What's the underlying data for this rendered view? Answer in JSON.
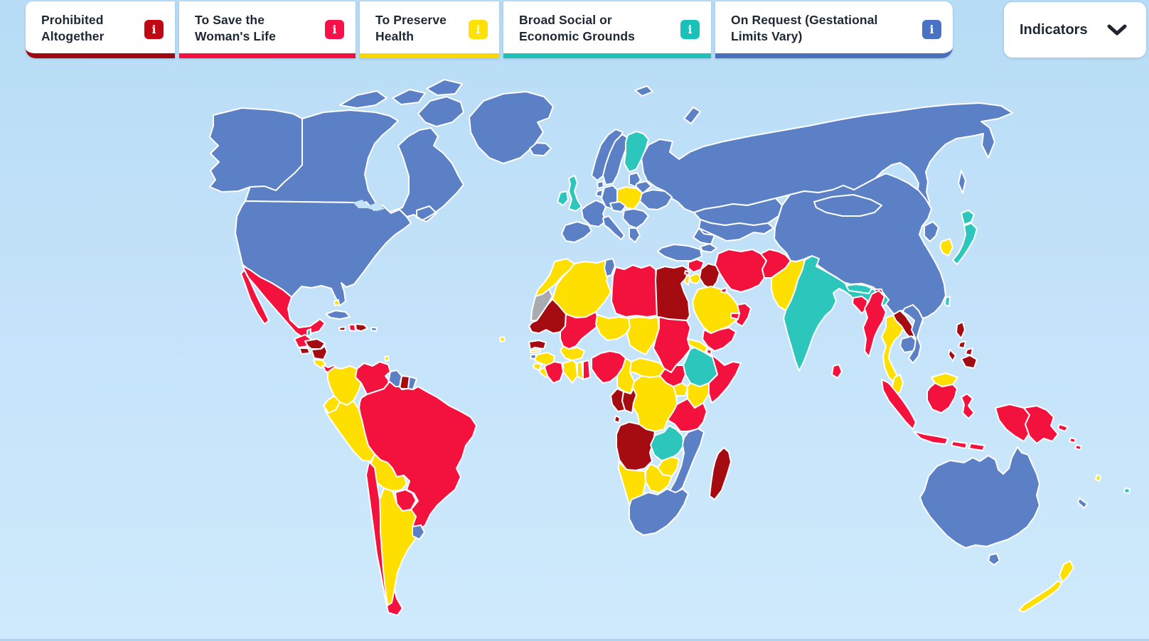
{
  "legend": {
    "info_symbol": "i",
    "cards": [
      {
        "id": "prohibited",
        "label": "Prohibited Altogether",
        "color": "#a50c12",
        "border_color": "#9e0911",
        "badge_color": "#c00713"
      },
      {
        "id": "save_life",
        "label": "To Save the Woman's Life",
        "color": "#f3123d",
        "border_color": "#f3123d",
        "badge_color": "#f81149"
      },
      {
        "id": "preserve_health",
        "label": "To Preserve Health",
        "color": "#ffdf00",
        "border_color": "#f7d800",
        "badge_color": "#ffe205"
      },
      {
        "id": "broad_social",
        "label": "Broad Social or Economic Grounds",
        "color": "#2cc6bd",
        "border_color": "#21c0b6",
        "badge_color": "#19c2b8"
      },
      {
        "id": "on_request",
        "label": "On Request (Gestational Limits Vary)",
        "color": "#5b80c6",
        "border_color": "#4a70bd",
        "badge_color": "#4a72c4"
      }
    ]
  },
  "indicators": {
    "label": "Indicators"
  },
  "map": {
    "no_data_color": "#a8abaf",
    "lake_color": "#c2e3f9",
    "border_color": "#ffffff",
    "ocean_top": "#b8dcf6",
    "ocean_bottom": "#cfeafc",
    "countries": [
      {
        "slug": "russia",
        "name": "Russia",
        "category": "on_request"
      },
      {
        "slug": "canada",
        "name": "Canada",
        "category": "on_request"
      },
      {
        "slug": "usa",
        "name": "United States",
        "category": "on_request"
      },
      {
        "slug": "greenland",
        "name": "Greenland",
        "category": "on_request"
      },
      {
        "slug": "mexico",
        "name": "Mexico",
        "category": "save_life"
      },
      {
        "slug": "cuba",
        "name": "Cuba",
        "category": "on_request"
      },
      {
        "slug": "jamaica",
        "name": "Jamaica",
        "category": "prohibited"
      },
      {
        "slug": "haiti",
        "name": "Haiti",
        "category": "save_life"
      },
      {
        "slug": "dominican_republic",
        "name": "Dominican Republic",
        "category": "prohibited"
      },
      {
        "slug": "puerto_rico",
        "name": "Puerto Rico",
        "category": "on_request"
      },
      {
        "slug": "bahamas",
        "name": "Bahamas",
        "category": "preserve_health"
      },
      {
        "slug": "belize",
        "name": "Belize",
        "category": "broad_social"
      },
      {
        "slug": "guatemala",
        "name": "Guatemala",
        "category": "save_life"
      },
      {
        "slug": "honduras",
        "name": "Honduras",
        "category": "prohibited"
      },
      {
        "slug": "el_salvador",
        "name": "El Salvador",
        "category": "prohibited"
      },
      {
        "slug": "nicaragua",
        "name": "Nicaragua",
        "category": "prohibited"
      },
      {
        "slug": "costa_rica",
        "name": "Costa Rica",
        "category": "preserve_health"
      },
      {
        "slug": "panama",
        "name": "Panama",
        "category": "save_life"
      },
      {
        "slug": "trinidad_tobago",
        "name": "Trinidad and Tobago",
        "category": "preserve_health"
      },
      {
        "slug": "colombia",
        "name": "Colombia",
        "category": "preserve_health"
      },
      {
        "slug": "venezuela",
        "name": "Venezuela",
        "category": "save_life"
      },
      {
        "slug": "guyana",
        "name": "Guyana",
        "category": "on_request"
      },
      {
        "slug": "suriname",
        "name": "Suriname",
        "category": "prohibited"
      },
      {
        "slug": "french_guiana",
        "name": "French Guiana",
        "category": "on_request"
      },
      {
        "slug": "brazil",
        "name": "Brazil",
        "category": "save_life"
      },
      {
        "slug": "ecuador",
        "name": "Ecuador",
        "category": "preserve_health"
      },
      {
        "slug": "peru",
        "name": "Peru",
        "category": "preserve_health"
      },
      {
        "slug": "bolivia",
        "name": "Bolivia",
        "category": "preserve_health"
      },
      {
        "slug": "paraguay",
        "name": "Paraguay",
        "category": "save_life"
      },
      {
        "slug": "chile",
        "name": "Chile",
        "category": "save_life"
      },
      {
        "slug": "argentina",
        "name": "Argentina",
        "category": "preserve_health"
      },
      {
        "slug": "uruguay",
        "name": "Uruguay",
        "category": "on_request"
      },
      {
        "slug": "morocco",
        "name": "Morocco",
        "category": "preserve_health"
      },
      {
        "slug": "western_sahara",
        "name": "Western Sahara",
        "category": "no_data"
      },
      {
        "slug": "algeria",
        "name": "Algeria",
        "category": "preserve_health"
      },
      {
        "slug": "tunisia",
        "name": "Tunisia",
        "category": "on_request"
      },
      {
        "slug": "libya",
        "name": "Libya",
        "category": "save_life"
      },
      {
        "slug": "egypt",
        "name": "Egypt",
        "category": "prohibited"
      },
      {
        "slug": "mauritania",
        "name": "Mauritania",
        "category": "prohibited"
      },
      {
        "slug": "mali",
        "name": "Mali",
        "category": "save_life"
      },
      {
        "slug": "niger",
        "name": "Niger",
        "category": "preserve_health"
      },
      {
        "slug": "chad",
        "name": "Chad",
        "category": "preserve_health"
      },
      {
        "slug": "sudan",
        "name": "Sudan",
        "category": "save_life"
      },
      {
        "slug": "eritrea",
        "name": "Eritrea",
        "category": "preserve_health"
      },
      {
        "slug": "djibouti",
        "name": "Djibouti",
        "category": "save_life"
      },
      {
        "slug": "ethiopia",
        "name": "Ethiopia",
        "category": "broad_social"
      },
      {
        "slug": "somalia",
        "name": "Somalia",
        "category": "save_life"
      },
      {
        "slug": "cape_verde",
        "name": "Cape Verde",
        "category": "preserve_health"
      },
      {
        "slug": "senegal",
        "name": "Senegal",
        "category": "prohibited"
      },
      {
        "slug": "gambia",
        "name": "Gambia",
        "category": "preserve_health"
      },
      {
        "slug": "guinea_bissau",
        "name": "Guinea-Bissau",
        "category": "on_request"
      },
      {
        "slug": "guinea",
        "name": "Guinea",
        "category": "preserve_health"
      },
      {
        "slug": "sierra_leone",
        "name": "Sierra Leone",
        "category": "preserve_health"
      },
      {
        "slug": "liberia",
        "name": "Liberia",
        "category": "preserve_health"
      },
      {
        "slug": "ivory_coast",
        "name": "Cote d'Ivoire",
        "category": "save_life"
      },
      {
        "slug": "burkina_faso",
        "name": "Burkina Faso",
        "category": "preserve_health"
      },
      {
        "slug": "ghana",
        "name": "Ghana",
        "category": "preserve_health"
      },
      {
        "slug": "togo",
        "name": "Togo",
        "category": "preserve_health"
      },
      {
        "slug": "benin",
        "name": "Benin",
        "category": "save_life"
      },
      {
        "slug": "nigeria",
        "name": "Nigeria",
        "category": "save_life"
      },
      {
        "slug": "cameroon",
        "name": "Cameroon",
        "category": "preserve_health"
      },
      {
        "slug": "central_african_republic",
        "name": "Central African Republic",
        "category": "preserve_health"
      },
      {
        "slug": "south_sudan",
        "name": "South Sudan",
        "category": "save_life"
      },
      {
        "slug": "uganda",
        "name": "Uganda",
        "category": "preserve_health"
      },
      {
        "slug": "kenya",
        "name": "Kenya",
        "category": "preserve_health"
      },
      {
        "slug": "rwanda_burundi",
        "name": "Rwanda and Burundi",
        "category": "broad_social"
      },
      {
        "slug": "dr_congo",
        "name": "Democratic Republic of the Congo",
        "category": "preserve_health"
      },
      {
        "slug": "gabon",
        "name": "Gabon",
        "category": "prohibited"
      },
      {
        "slug": "congo",
        "name": "Congo",
        "category": "prohibited"
      },
      {
        "slug": "angola",
        "name": "Angola",
        "category": "prohibited"
      },
      {
        "slug": "zambia",
        "name": "Zambia",
        "category": "broad_social"
      },
      {
        "slug": "tanzania",
        "name": "Tanzania",
        "category": "save_life"
      },
      {
        "slug": "malawi",
        "name": "Malawi",
        "category": "save_life"
      },
      {
        "slug": "mozambique",
        "name": "Mozambique",
        "category": "on_request"
      },
      {
        "slug": "zimbabwe",
        "name": "Zimbabwe",
        "category": "preserve_health"
      },
      {
        "slug": "botswana",
        "name": "Botswana",
        "category": "preserve_health"
      },
      {
        "slug": "namibia",
        "name": "Namibia",
        "category": "preserve_health"
      },
      {
        "slug": "south_africa",
        "name": "South Africa",
        "category": "on_request"
      },
      {
        "slug": "madagascar",
        "name": "Madagascar",
        "category": "prohibited"
      },
      {
        "slug": "iceland",
        "name": "Iceland",
        "category": "on_request"
      },
      {
        "slug": "norway",
        "name": "Norway",
        "category": "on_request"
      },
      {
        "slug": "sweden",
        "name": "Sweden",
        "category": "on_request"
      },
      {
        "slug": "finland",
        "name": "Finland",
        "category": "broad_social"
      },
      {
        "slug": "denmark",
        "name": "Denmark",
        "category": "on_request"
      },
      {
        "slug": "baltic_states",
        "name": "Baltic States",
        "category": "on_request"
      },
      {
        "slug": "poland",
        "name": "Poland",
        "category": "preserve_health"
      },
      {
        "slug": "germany",
        "name": "Germany",
        "category": "on_request"
      },
      {
        "slug": "benelux",
        "name": "Benelux",
        "category": "on_request"
      },
      {
        "slug": "france",
        "name": "France",
        "category": "on_request"
      },
      {
        "slug": "spain_portugal",
        "name": "Spain and Portugal",
        "category": "on_request"
      },
      {
        "slug": "italy",
        "name": "Italy",
        "category": "on_request"
      },
      {
        "slug": "central_europe",
        "name": "Central Europe",
        "category": "on_request"
      },
      {
        "slug": "balkans",
        "name": "Balkans",
        "category": "on_request"
      },
      {
        "slug": "greece",
        "name": "Greece",
        "category": "on_request"
      },
      {
        "slug": "ukraine",
        "name": "Ukraine",
        "category": "on_request"
      },
      {
        "slug": "belarus",
        "name": "Belarus",
        "category": "on_request"
      },
      {
        "slug": "uk",
        "name": "United Kingdom",
        "category": "broad_social"
      },
      {
        "slug": "ireland",
        "name": "Ireland",
        "category": "broad_social"
      },
      {
        "slug": "kazakhstan",
        "name": "Kazakhstan",
        "category": "on_request"
      },
      {
        "slug": "central_asia",
        "name": "Central Asia",
        "category": "on_request"
      },
      {
        "slug": "caucasus",
        "name": "Caucasus",
        "category": "on_request"
      },
      {
        "slug": "turkey",
        "name": "Turkey",
        "category": "on_request"
      },
      {
        "slug": "syria",
        "name": "Syria",
        "category": "save_life"
      },
      {
        "slug": "lebanon",
        "name": "Lebanon",
        "category": "save_life"
      },
      {
        "slug": "israel",
        "name": "Israel",
        "category": "preserve_health"
      },
      {
        "slug": "jordan",
        "name": "Jordan",
        "category": "preserve_health"
      },
      {
        "slug": "iraq",
        "name": "Iraq",
        "category": "prohibited"
      },
      {
        "slug": "iran",
        "name": "Iran",
        "category": "save_life"
      },
      {
        "slug": "afghanistan",
        "name": "Afghanistan",
        "category": "save_life"
      },
      {
        "slug": "pakistan",
        "name": "Pakistan",
        "category": "preserve_health"
      },
      {
        "slug": "saudi_arabia",
        "name": "Saudi Arabia",
        "category": "preserve_health"
      },
      {
        "slug": "kuwait",
        "name": "Kuwait",
        "category": "save_life"
      },
      {
        "slug": "yemen",
        "name": "Yemen",
        "category": "save_life"
      },
      {
        "slug": "oman",
        "name": "Oman",
        "category": "save_life"
      },
      {
        "slug": "uae",
        "name": "United Arab Emirates",
        "category": "save_life"
      },
      {
        "slug": "china",
        "name": "China",
        "category": "on_request"
      },
      {
        "slug": "mongolia",
        "name": "Mongolia",
        "category": "on_request"
      },
      {
        "slug": "north_korea",
        "name": "North Korea",
        "category": "on_request"
      },
      {
        "slug": "south_korea",
        "name": "South Korea",
        "category": "preserve_health"
      },
      {
        "slug": "japan",
        "name": "Japan",
        "category": "broad_social"
      },
      {
        "slug": "taiwan",
        "name": "Taiwan",
        "category": "broad_social"
      },
      {
        "slug": "india",
        "name": "India",
        "category": "broad_social"
      },
      {
        "slug": "nepal",
        "name": "Nepal",
        "category": "broad_social"
      },
      {
        "slug": "bhutan",
        "name": "Bhutan",
        "category": "save_life"
      },
      {
        "slug": "bangladesh",
        "name": "Bangladesh",
        "category": "save_life"
      },
      {
        "slug": "sri_lanka",
        "name": "Sri Lanka",
        "category": "save_life"
      },
      {
        "slug": "myanmar",
        "name": "Myanmar",
        "category": "save_life"
      },
      {
        "slug": "thailand",
        "name": "Thailand",
        "category": "preserve_health"
      },
      {
        "slug": "laos",
        "name": "Laos",
        "category": "prohibited"
      },
      {
        "slug": "cambodia",
        "name": "Cambodia",
        "category": "on_request"
      },
      {
        "slug": "vietnam",
        "name": "Vietnam",
        "category": "on_request"
      },
      {
        "slug": "malaysia",
        "name": "Malaysia",
        "category": "preserve_health"
      },
      {
        "slug": "indonesia",
        "name": "Indonesia",
        "category": "save_life"
      },
      {
        "slug": "philippines",
        "name": "Philippines",
        "category": "prohibited"
      },
      {
        "slug": "papua_new_guinea",
        "name": "Papua New Guinea",
        "category": "save_life"
      },
      {
        "slug": "solomon_islands",
        "name": "Solomon Islands",
        "category": "save_life"
      },
      {
        "slug": "vanuatu",
        "name": "Vanuatu",
        "category": "preserve_health"
      },
      {
        "slug": "fiji",
        "name": "Fiji",
        "category": "broad_social"
      },
      {
        "slug": "new_caledonia",
        "name": "New Caledonia",
        "category": "on_request"
      },
      {
        "slug": "australia",
        "name": "Australia",
        "category": "on_request"
      },
      {
        "slug": "new_zealand",
        "name": "New Zealand",
        "category": "preserve_health"
      }
    ]
  }
}
